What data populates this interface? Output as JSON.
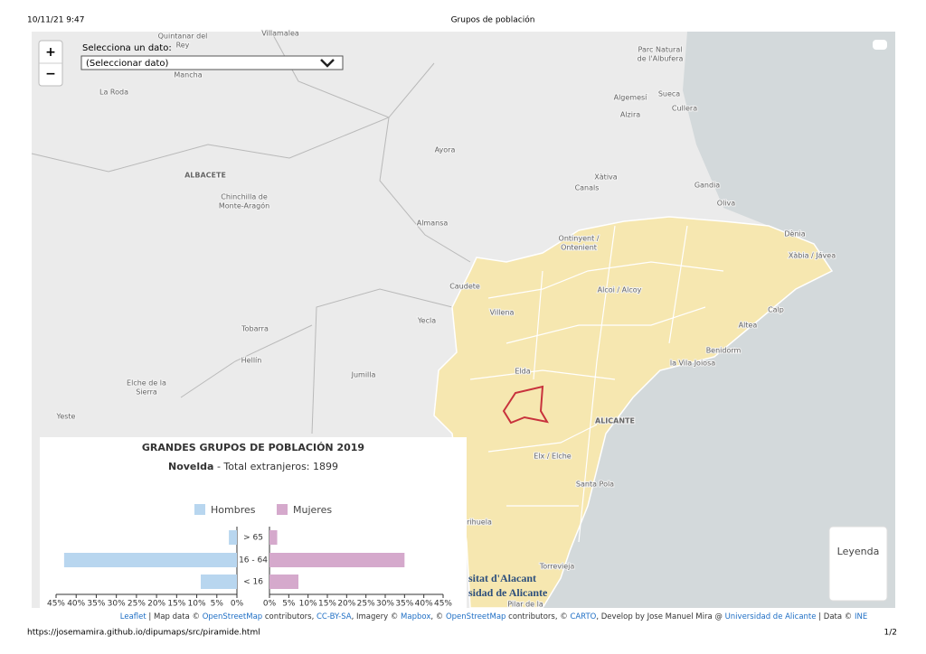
{
  "header": {
    "datetime": "10/11/21 9:47",
    "page_title": "Grupos de población"
  },
  "footer": {
    "url": "https://josemamira.github.io/dipumaps/src/piramide.html",
    "page": "1/2"
  },
  "controls": {
    "zoom_in": "+",
    "zoom_out": "−",
    "select_label": "Selecciona un dato:",
    "select_value": "(Seleccionar dato)",
    "legend_button": "Leyenda"
  },
  "map": {
    "labels": [
      [
        "Quintanar del",
        "Rey"
      ],
      [
        "Villamalea"
      ],
      [
        "Parc Natural",
        "de l'Albufera"
      ],
      [
        "La Roda"
      ],
      [
        "Mancha"
      ],
      [
        "Algemesí"
      ],
      [
        "Sueca"
      ],
      [
        "Alzira"
      ],
      [
        "Cullera"
      ],
      [
        "Ayora"
      ],
      [
        "ALBACETE"
      ],
      [
        "Chinchilla de",
        "Monte-Aragón"
      ],
      [
        "Xàtiva"
      ],
      [
        "Canals"
      ],
      [
        "Gandia"
      ],
      [
        "Oliva"
      ],
      [
        "Almansa"
      ],
      [
        "Ontinyent /",
        "Ontenient"
      ],
      [
        "Dènia"
      ],
      [
        "Xàbia / Jávea"
      ],
      [
        "Caudete"
      ],
      [
        "Alcoi / Alcoy"
      ],
      [
        "Villena"
      ],
      [
        "Calp"
      ],
      [
        "Yecla"
      ],
      [
        "Altea"
      ],
      [
        "Tobarra"
      ],
      [
        "Benidorm"
      ],
      [
        "la Vila Joiosa"
      ],
      [
        "Hellín"
      ],
      [
        "Jumilla"
      ],
      [
        "Elda"
      ],
      [
        "Elche de la",
        "Sierra"
      ],
      [
        "ALICANTE"
      ],
      [
        "Yeste"
      ],
      [
        "Elx / Elche"
      ],
      [
        "Santa Pola"
      ],
      [
        "rihuela"
      ],
      [
        "Torrevieja"
      ],
      [
        "Pilar de la"
      ]
    ],
    "logo": [
      "sitat d'Alacant",
      "sidad de Alicante"
    ]
  },
  "attribution": [
    "Leaflet",
    " | Map data © ",
    "OpenStreetMap",
    " contributors, ",
    "CC-BY-SA",
    ", Imagery © ",
    "Mapbox",
    ", © ",
    "OpenStreetMap",
    " contributors, © ",
    "CARTO",
    ", Develop by Jose Manuel Mira @ ",
    "Universidad de Alicante",
    " | Data © ",
    "INE"
  ],
  "chart_data": {
    "type": "pyramid",
    "title": "GRANDES GRUPOS DE POBLACIÓN 2019",
    "subtitle_place": "Novelda",
    "subtitle": " - Total extranjeros: 1899",
    "categories": [
      "< 16",
      "16 - 64",
      "> 65"
    ],
    "series": [
      {
        "name": "Hombres",
        "color": "#b8d6ef",
        "values": [
          9,
          43,
          2
        ]
      },
      {
        "name": "Mujeres",
        "color": "#d5a9cc",
        "values": [
          7.5,
          35,
          2
        ]
      }
    ],
    "xlim": [
      0,
      45
    ],
    "xticks": [
      {
        "value": 0,
        "label": "0%"
      },
      {
        "value": 5,
        "label": "5%"
      },
      {
        "value": 10,
        "label": "10%"
      },
      {
        "value": 15,
        "label": "15%"
      },
      {
        "value": 20,
        "label": "20%"
      },
      {
        "value": 25,
        "label": "25%"
      },
      {
        "value": 30,
        "label": "30%"
      },
      {
        "value": 35,
        "label": "35%"
      },
      {
        "value": 40,
        "label": "40%"
      },
      {
        "value": 45,
        "label": "45%"
      }
    ]
  }
}
